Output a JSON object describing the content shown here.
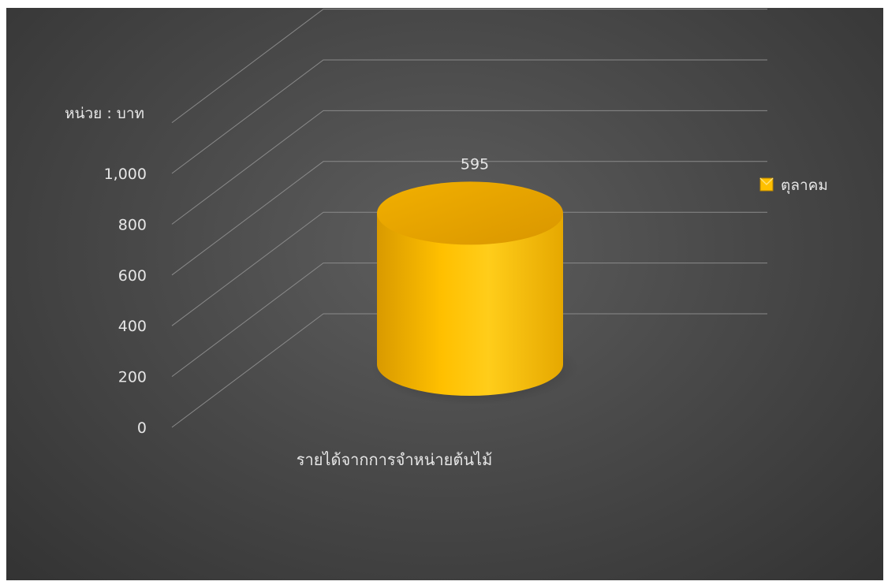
{
  "chart_data": {
    "type": "bar",
    "style": "3d-cylinder",
    "unit_label": "หน่วย : บาท",
    "categories": [
      "รายได้จากการจำหน่ายต้นไม้"
    ],
    "series": [
      {
        "name": "ตุลาคม",
        "values": [
          595
        ],
        "color": "#FFC000"
      }
    ],
    "y_ticks": [
      "0",
      "200",
      "400",
      "600",
      "800",
      "1,000"
    ],
    "ylim": [
      0,
      1000
    ],
    "data_labels": [
      "595"
    ],
    "grid": true,
    "legend_position": "right"
  }
}
